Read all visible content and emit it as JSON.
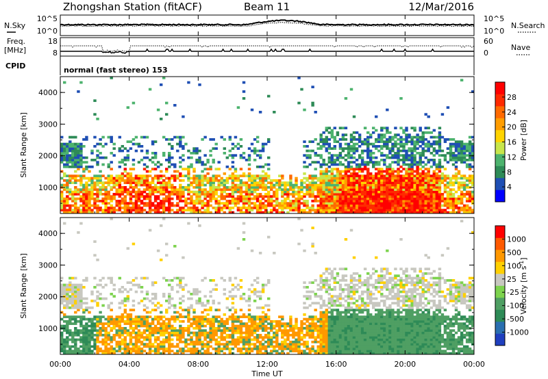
{
  "header": {
    "station": "Zhongshan Station (fitACF)",
    "beam": "Beam 11",
    "date": "12/Mar/2016"
  },
  "top_panels": {
    "noise_left_label": "N.Sky",
    "noise_right_label": "N.Search",
    "noise_left_ticks": [
      "10^5",
      "10^0"
    ],
    "noise_right_ticks": [
      "10^5",
      "10^0"
    ],
    "freq_left_label_1": "Freq.",
    "freq_left_label_2": "[MHz]",
    "freq_right_label": "Nave",
    "freq_left_ticks": [
      "18",
      "8"
    ],
    "freq_right_ticks": [
      "60",
      "0"
    ],
    "cpid_label": "CPID",
    "cpid_text": "normal (fast stereo) 153"
  },
  "chart_data": [
    {
      "type": "heatmap",
      "name": "power",
      "ylabel": "Slant Range [km]",
      "ylim": [
        180,
        4500
      ],
      "yticks": [
        "4000",
        "3000",
        "2000",
        "1000"
      ],
      "xlim": [
        "00:00",
        "24:00"
      ],
      "colorbar": {
        "label": "Power [dB]",
        "tick_labels": [
          "28",
          "24",
          "20",
          "16",
          "12",
          "8",
          "4"
        ],
        "colors": [
          "#0000ff",
          "#1f4fb4",
          "#2e8b57",
          "#4db36e",
          "#c8e64b",
          "#ffd400",
          "#ff9d00",
          "#ff6a00",
          "#ff2a00",
          "#ff0000"
        ]
      }
    },
    {
      "type": "heatmap",
      "name": "velocity",
      "ylabel": "Slant Range [km]",
      "ylim": [
        180,
        4500
      ],
      "yticks": [
        "4000",
        "3000",
        "2000",
        "1000"
      ],
      "xlim": [
        "00:00",
        "24:00"
      ],
      "colorbar": {
        "label": "Velocity [m s^-1]",
        "tick_labels": [
          "1000",
          "500",
          "100",
          "25",
          "-25",
          "-100",
          "-500",
          "-1000"
        ],
        "colors": [
          "#1f3fbf",
          "#2a6fb0",
          "#2e8b57",
          "#4f9f63",
          "#7dd34e",
          "#c8c8c0",
          "#ffd000",
          "#ff9800",
          "#ff5a00",
          "#ff0000"
        ]
      }
    }
  ],
  "xaxis": {
    "label": "Time UT",
    "ticks": [
      "00:00",
      "04:00",
      "08:00",
      "12:00",
      "16:00",
      "20:00",
      "00:00"
    ]
  }
}
